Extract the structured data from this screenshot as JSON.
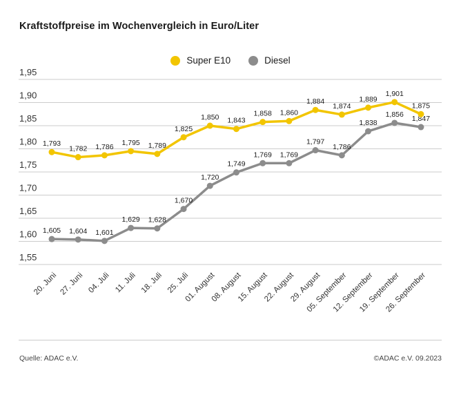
{
  "chart_data": {
    "type": "line",
    "title": "Kraftstoffpreise im Wochenvergleich in Euro/Liter",
    "categories": [
      "20. Juni",
      "27. Juni",
      "04. Juli",
      "11. Juli",
      "18. Juli",
      "25. Juli",
      "01. August",
      "08. August",
      "15. August",
      "22. August",
      "29. August",
      "05. September",
      "12. September",
      "19. September",
      "26. September"
    ],
    "series": [
      {
        "name": "Super E10",
        "color": "#F2C500",
        "values": [
          1.793,
          1.782,
          1.786,
          1.795,
          1.789,
          1.825,
          1.85,
          1.843,
          1.858,
          1.86,
          1.884,
          1.874,
          1.889,
          1.901,
          1.875
        ],
        "labels": [
          "1,793",
          "1,782",
          "1,786",
          "1,795",
          "1,789",
          "1,825",
          "1,850",
          "1,843",
          "1,858",
          "1,860",
          "1,884",
          "1,874",
          "1,889",
          "1,901",
          "1,875"
        ]
      },
      {
        "name": "Diesel",
        "color": "#8C8C8C",
        "values": [
          1.605,
          1.604,
          1.601,
          1.629,
          1.628,
          1.67,
          1.72,
          1.749,
          1.769,
          1.769,
          1.797,
          1.786,
          1.838,
          1.856,
          1.847
        ],
        "labels": [
          "1,605",
          "1,604",
          "1,601",
          "1,629",
          "1,628",
          "1,670",
          "1,720",
          "1,749",
          "1,769",
          "1,769",
          "1,797",
          "1,786",
          "1,838",
          "1,856",
          "1,847"
        ]
      }
    ],
    "y_ticks": [
      "1,95",
      "1,90",
      "1,85",
      "1,80",
      "1,75",
      "1,70",
      "1,65",
      "1,60",
      "1,55"
    ],
    "ylim": [
      1.55,
      1.95
    ],
    "xlabel": "",
    "ylabel": "Euro/Liter",
    "grid": true,
    "legend_position": "top",
    "decimal_separator": ",",
    "colors": {
      "gridline": "#cbcbcb",
      "tick_label": "#333333",
      "data_label": "#1a1a1a"
    }
  },
  "footer": {
    "source": "Quelle: ADAC e.V.",
    "copyright": "©ADAC e.V. 09.2023"
  }
}
